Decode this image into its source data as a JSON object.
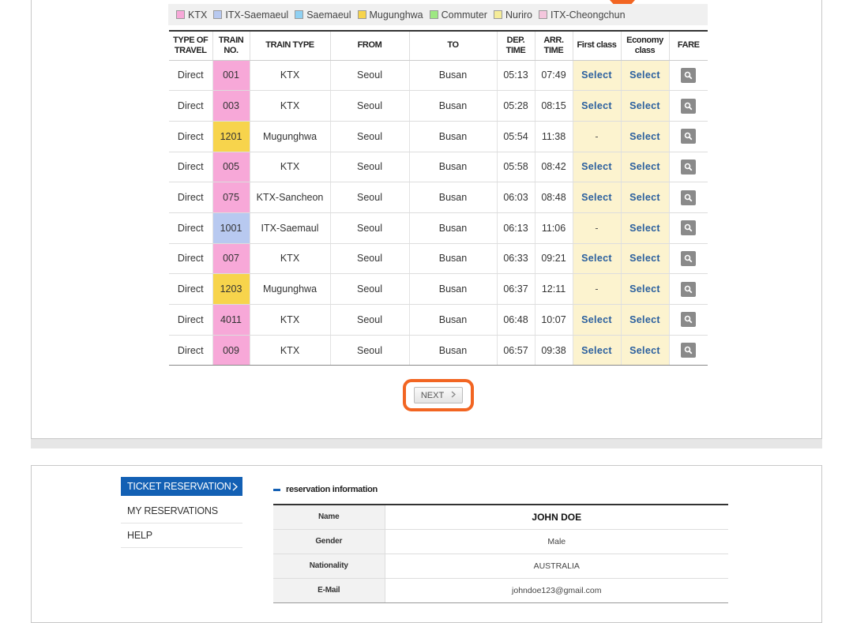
{
  "legend": [
    {
      "label": "KTX",
      "color": "#f7a8d8"
    },
    {
      "label": "ITX-Saemaeul",
      "color": "#b8c9f0"
    },
    {
      "label": "Saemaeul",
      "color": "#8fd0f2"
    },
    {
      "label": "Mugunghwa",
      "color": "#f7d44c"
    },
    {
      "label": "Commuter",
      "color": "#9ee882"
    },
    {
      "label": "Nuriro",
      "color": "#f5ec99"
    },
    {
      "label": "ITX-Cheongchun",
      "color": "#f4c6dd"
    }
  ],
  "table": {
    "headers": [
      "TYPE OF TRAVEL",
      "TRAIN NO.",
      "TRAIN TYPE",
      "FROM",
      "TO",
      "DEP. TIME",
      "ARR. TIME",
      "First class",
      "Economy class",
      "FARE"
    ],
    "rows": [
      {
        "type": "Direct",
        "no": "001",
        "color": "#f7a8d8",
        "train": "KTX",
        "from": "Seoul",
        "to": "Busan",
        "dep": "05:13",
        "arr": "07:49",
        "first": "Select",
        "eco": "Select"
      },
      {
        "type": "Direct",
        "no": "003",
        "color": "#f7a8d8",
        "train": "KTX",
        "from": "Seoul",
        "to": "Busan",
        "dep": "05:28",
        "arr": "08:15",
        "first": "Select",
        "eco": "Select"
      },
      {
        "type": "Direct",
        "no": "1201",
        "color": "#f7d44c",
        "train": "Mugunghwa",
        "from": "Seoul",
        "to": "Busan",
        "dep": "05:54",
        "arr": "11:38",
        "first": "-",
        "eco": "Select"
      },
      {
        "type": "Direct",
        "no": "005",
        "color": "#f7a8d8",
        "train": "KTX",
        "from": "Seoul",
        "to": "Busan",
        "dep": "05:58",
        "arr": "08:42",
        "first": "Select",
        "eco": "Select"
      },
      {
        "type": "Direct",
        "no": "075",
        "color": "#f7a8d8",
        "train": "KTX-Sancheon",
        "from": "Seoul",
        "to": "Busan",
        "dep": "06:03",
        "arr": "08:48",
        "first": "Select",
        "eco": "Select"
      },
      {
        "type": "Direct",
        "no": "1001",
        "color": "#b8c9f0",
        "train": "ITX-Saemaul",
        "from": "Seoul",
        "to": "Busan",
        "dep": "06:13",
        "arr": "11:06",
        "first": "-",
        "eco": "Select"
      },
      {
        "type": "Direct",
        "no": "007",
        "color": "#f7a8d8",
        "train": "KTX",
        "from": "Seoul",
        "to": "Busan",
        "dep": "06:33",
        "arr": "09:21",
        "first": "Select",
        "eco": "Select"
      },
      {
        "type": "Direct",
        "no": "1203",
        "color": "#f7d44c",
        "train": "Mugunghwa",
        "from": "Seoul",
        "to": "Busan",
        "dep": "06:37",
        "arr": "12:11",
        "first": "-",
        "eco": "Select"
      },
      {
        "type": "Direct",
        "no": "4011",
        "color": "#f7a8d8",
        "train": "KTX",
        "from": "Seoul",
        "to": "Busan",
        "dep": "06:48",
        "arr": "10:07",
        "first": "Select",
        "eco": "Select"
      },
      {
        "type": "Direct",
        "no": "009",
        "color": "#f7a8d8",
        "train": "KTX",
        "from": "Seoul",
        "to": "Busan",
        "dep": "06:57",
        "arr": "09:38",
        "first": "Select",
        "eco": "Select"
      }
    ]
  },
  "pagination": {
    "next_label": "NEXT"
  },
  "sidebar": {
    "items": [
      {
        "label": "TICKET RESERVATION",
        "active": true
      },
      {
        "label": "MY RESERVATIONS",
        "active": false
      },
      {
        "label": "HELP",
        "active": false
      }
    ]
  },
  "reservation": {
    "title": "reservation information",
    "fields": [
      {
        "label": "Name",
        "value": "JOHN DOE"
      },
      {
        "label": "Gender",
        "value": "Male"
      },
      {
        "label": "Nationality",
        "value": "AUSTRALIA"
      },
      {
        "label": "E-Mail",
        "value": "johndoe123@gmail.com"
      }
    ]
  },
  "colors": {
    "accent_orange": "#f26522",
    "brand_blue": "#1360b4",
    "select_text": "#2a5f9e",
    "class_highlight": "#fcf3cf"
  },
  "icons": {
    "fare": "magnifier-icon",
    "next": "chevron-right-icon",
    "sidebar_active": "chevron-right-icon"
  }
}
